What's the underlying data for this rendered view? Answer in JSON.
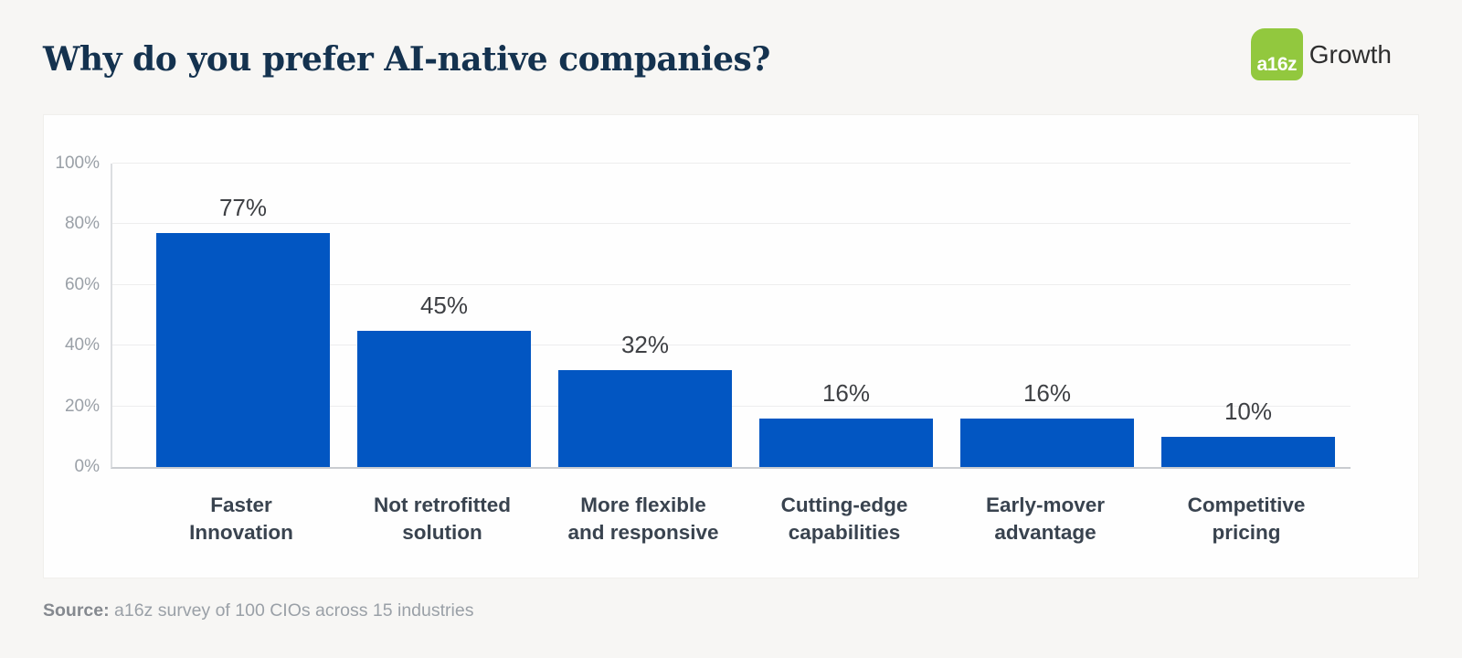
{
  "header": {
    "title": "Why do you prefer AI-native companies?",
    "logo": {
      "mark_text": "a16z",
      "suffix": "Growth",
      "mark_color": "#92c83e"
    }
  },
  "chart_data": {
    "type": "bar",
    "title": "Why do you prefer AI-native companies?",
    "categories": [
      "Faster\nInnovation",
      "Not retrofitted\nsolution",
      "More flexible\nand responsive",
      "Cutting-edge\ncapabilities",
      "Early-mover\nadvantage",
      "Competitive\npricing"
    ],
    "values": [
      77,
      45,
      32,
      16,
      16,
      10
    ],
    "value_labels": [
      "77%",
      "45%",
      "32%",
      "16%",
      "16%",
      "10%"
    ],
    "xlabel": "",
    "ylabel": "",
    "ylim": [
      0,
      100
    ],
    "yticks": [
      0,
      20,
      40,
      60,
      80,
      100
    ],
    "ytick_labels": [
      "0%",
      "20%",
      "40%",
      "60%",
      "80%",
      "100%"
    ],
    "bar_color": "#0256c2",
    "grid": true,
    "legend": false
  },
  "footer": {
    "source_label": "Source:",
    "source_text": " a16z survey of 100 CIOs across 15 industries"
  }
}
